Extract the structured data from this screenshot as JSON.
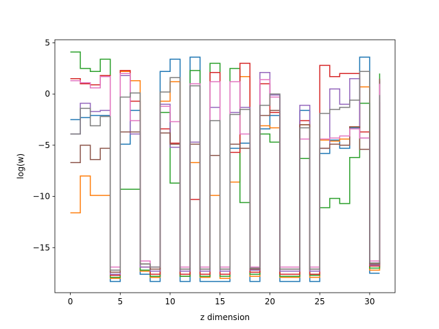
{
  "chart_data": {
    "type": "line",
    "step": "post",
    "title": "",
    "xlabel": "z dimension",
    "ylabel": "log(w)",
    "xlim": [
      -1.55,
      32.55
    ],
    "ylim": [
      -19.4,
      5.3
    ],
    "xticks": [
      0,
      5,
      10,
      15,
      20,
      25,
      30
    ],
    "yticks": [
      5,
      0,
      -5,
      -10,
      -15
    ],
    "grid": false,
    "x": [
      0,
      1,
      2,
      3,
      4,
      5,
      6,
      7,
      8,
      9,
      10,
      11,
      12,
      13,
      14,
      15,
      16,
      17,
      18,
      19,
      20,
      21,
      22,
      23,
      24,
      25,
      26,
      27,
      28,
      29,
      30,
      31
    ],
    "colors": [
      "#1f77b4",
      "#ff7f0e",
      "#2ca02c",
      "#d62728",
      "#9467bd",
      "#8c564b",
      "#e377c2",
      "#7f7f7f"
    ],
    "series": [
      {
        "values": [
          -2.5,
          -2.3,
          -2.1,
          -2.1,
          -18.3,
          -4.9,
          -1.6,
          -17.6,
          -18.3,
          2.2,
          3.4,
          -18.3,
          3.6,
          -18.3,
          -18.3,
          -18.3,
          -5.3,
          -4.8,
          -18.3,
          -3.4,
          -2.1,
          -18.3,
          -18.3,
          -1.6,
          -18.3,
          -5.8,
          -4.5,
          -5.3,
          -3.3,
          3.6,
          -17.5,
          -17.5
        ]
      },
      {
        "values": [
          -11.6,
          -8.0,
          -9.9,
          -9.9,
          -18.0,
          2.2,
          1.3,
          -17.3,
          -17.9,
          -0.7,
          1.2,
          -17.8,
          -6.7,
          -17.9,
          -9.9,
          -18.0,
          -8.6,
          1.7,
          -17.8,
          -3.1,
          -3.3,
          -17.9,
          -17.9,
          -3.0,
          -17.9,
          -4.5,
          -4.6,
          -4.4,
          -3.2,
          0.7,
          -17.2,
          -2.7
        ]
      },
      {
        "values": [
          4.1,
          2.5,
          2.2,
          3.4,
          -17.9,
          -9.3,
          -9.3,
          -17.2,
          -17.8,
          -1.8,
          -8.7,
          -17.8,
          2.3,
          -17.8,
          3.0,
          -17.8,
          2.5,
          -10.6,
          -17.6,
          -3.9,
          -4.7,
          -17.8,
          -17.8,
          -6.3,
          -17.7,
          -11.1,
          -10.2,
          -10.7,
          -6.2,
          -0.9,
          -17.0,
          2.0
        ]
      },
      {
        "values": [
          1.5,
          1.0,
          0.9,
          1.8,
          -17.7,
          2.3,
          -0.7,
          -16.9,
          -17.6,
          -3.4,
          -4.8,
          -17.6,
          -10.3,
          -17.6,
          2.1,
          -17.6,
          -5.7,
          3.0,
          -17.4,
          1.0,
          -1.8,
          -17.6,
          -17.6,
          -2.6,
          -17.6,
          2.8,
          1.7,
          2.0,
          2.0,
          -3.7,
          -16.8,
          -0.8
        ]
      },
      {
        "values": [
          -3.9,
          -0.9,
          -1.7,
          -1.6,
          -17.6,
          1.8,
          -3.9,
          -16.9,
          -17.3,
          -1.0,
          -5.2,
          -17.3,
          -4.7,
          -17.3,
          -1.3,
          -17.3,
          -1.8,
          -1.3,
          -17.2,
          2.1,
          -0.1,
          -17.3,
          -17.3,
          -1.1,
          -17.3,
          -5.3,
          0.5,
          -1.0,
          1.5,
          -4.3,
          -16.7,
          1.3
        ]
      },
      {
        "values": [
          -6.7,
          -5.0,
          -6.4,
          -5.3,
          -17.4,
          -3.7,
          -3.7,
          -16.6,
          -17.1,
          -3.8,
          -4.9,
          -17.1,
          -4.9,
          -17.1,
          -6.0,
          -17.1,
          -4.9,
          -5.3,
          -17.1,
          -2.1,
          -1.6,
          -17.1,
          -17.1,
          -3.0,
          -17.1,
          -5.3,
          -4.9,
          -5.0,
          -3.2,
          -5.4,
          -16.6,
          1.5
        ]
      },
      {
        "values": [
          1.3,
          1.1,
          0.6,
          1.7,
          -16.9,
          2.0,
          -2.6,
          -16.3,
          -16.9,
          -1.2,
          -2.7,
          -16.9,
          1.0,
          -16.9,
          1.2,
          -16.9,
          1.2,
          -3.9,
          -16.9,
          1.4,
          -0.3,
          -16.9,
          -16.9,
          -4.4,
          -16.9,
          -4.4,
          -4.3,
          -4.1,
          -3.4,
          -4.3,
          -16.3,
          1.0
        ]
      },
      {
        "values": [
          -3.9,
          -1.4,
          -3.1,
          -2.2,
          -17.2,
          -0.3,
          0.1,
          -16.6,
          -16.9,
          0.2,
          1.6,
          -17.1,
          0.8,
          -17.1,
          -2.6,
          -17.1,
          -2.0,
          -1.5,
          -17.0,
          -1.1,
          0.0,
          -17.1,
          -17.1,
          -3.3,
          -17.1,
          -1.9,
          -1.5,
          -1.3,
          -0.6,
          2.2,
          -16.5,
          -0.1
        ]
      }
    ]
  }
}
